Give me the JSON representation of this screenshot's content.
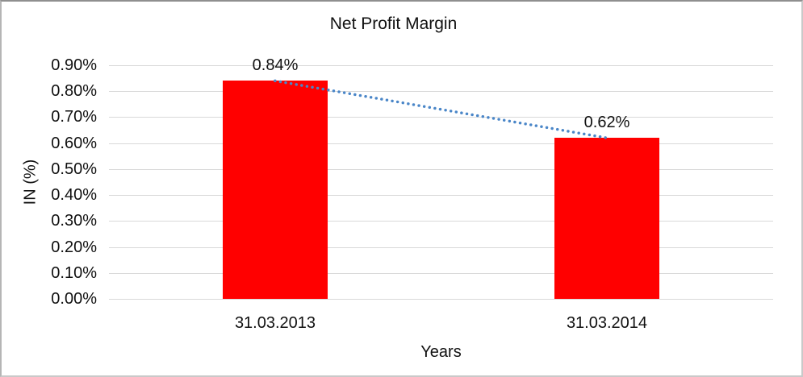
{
  "chart_data": {
    "type": "bar",
    "title": "Net Profit Margin",
    "xlabel": "Years",
    "ylabel": "IN (%)",
    "categories": [
      "31.03.2013",
      "31.03.2014"
    ],
    "values": [
      0.84,
      0.62
    ],
    "data_labels": [
      "0.84%",
      "0.62%"
    ],
    "ylim": [
      0,
      0.9
    ],
    "ytick_step": 0.1,
    "ytick_labels": [
      "0.00%",
      "0.10%",
      "0.20%",
      "0.30%",
      "0.40%",
      "0.50%",
      "0.60%",
      "0.70%",
      "0.80%",
      "0.90%"
    ],
    "legend_position": "none",
    "grid_on": true,
    "colors": {
      "bar": "#FF0000",
      "trendline": "#4A86C8",
      "gridline": "#D9D9D9",
      "axis_line": "#D9D9D9",
      "text": "#111111"
    },
    "trendline": {
      "style": "dotted",
      "from_value": 0.84,
      "to_value": 0.62
    }
  }
}
